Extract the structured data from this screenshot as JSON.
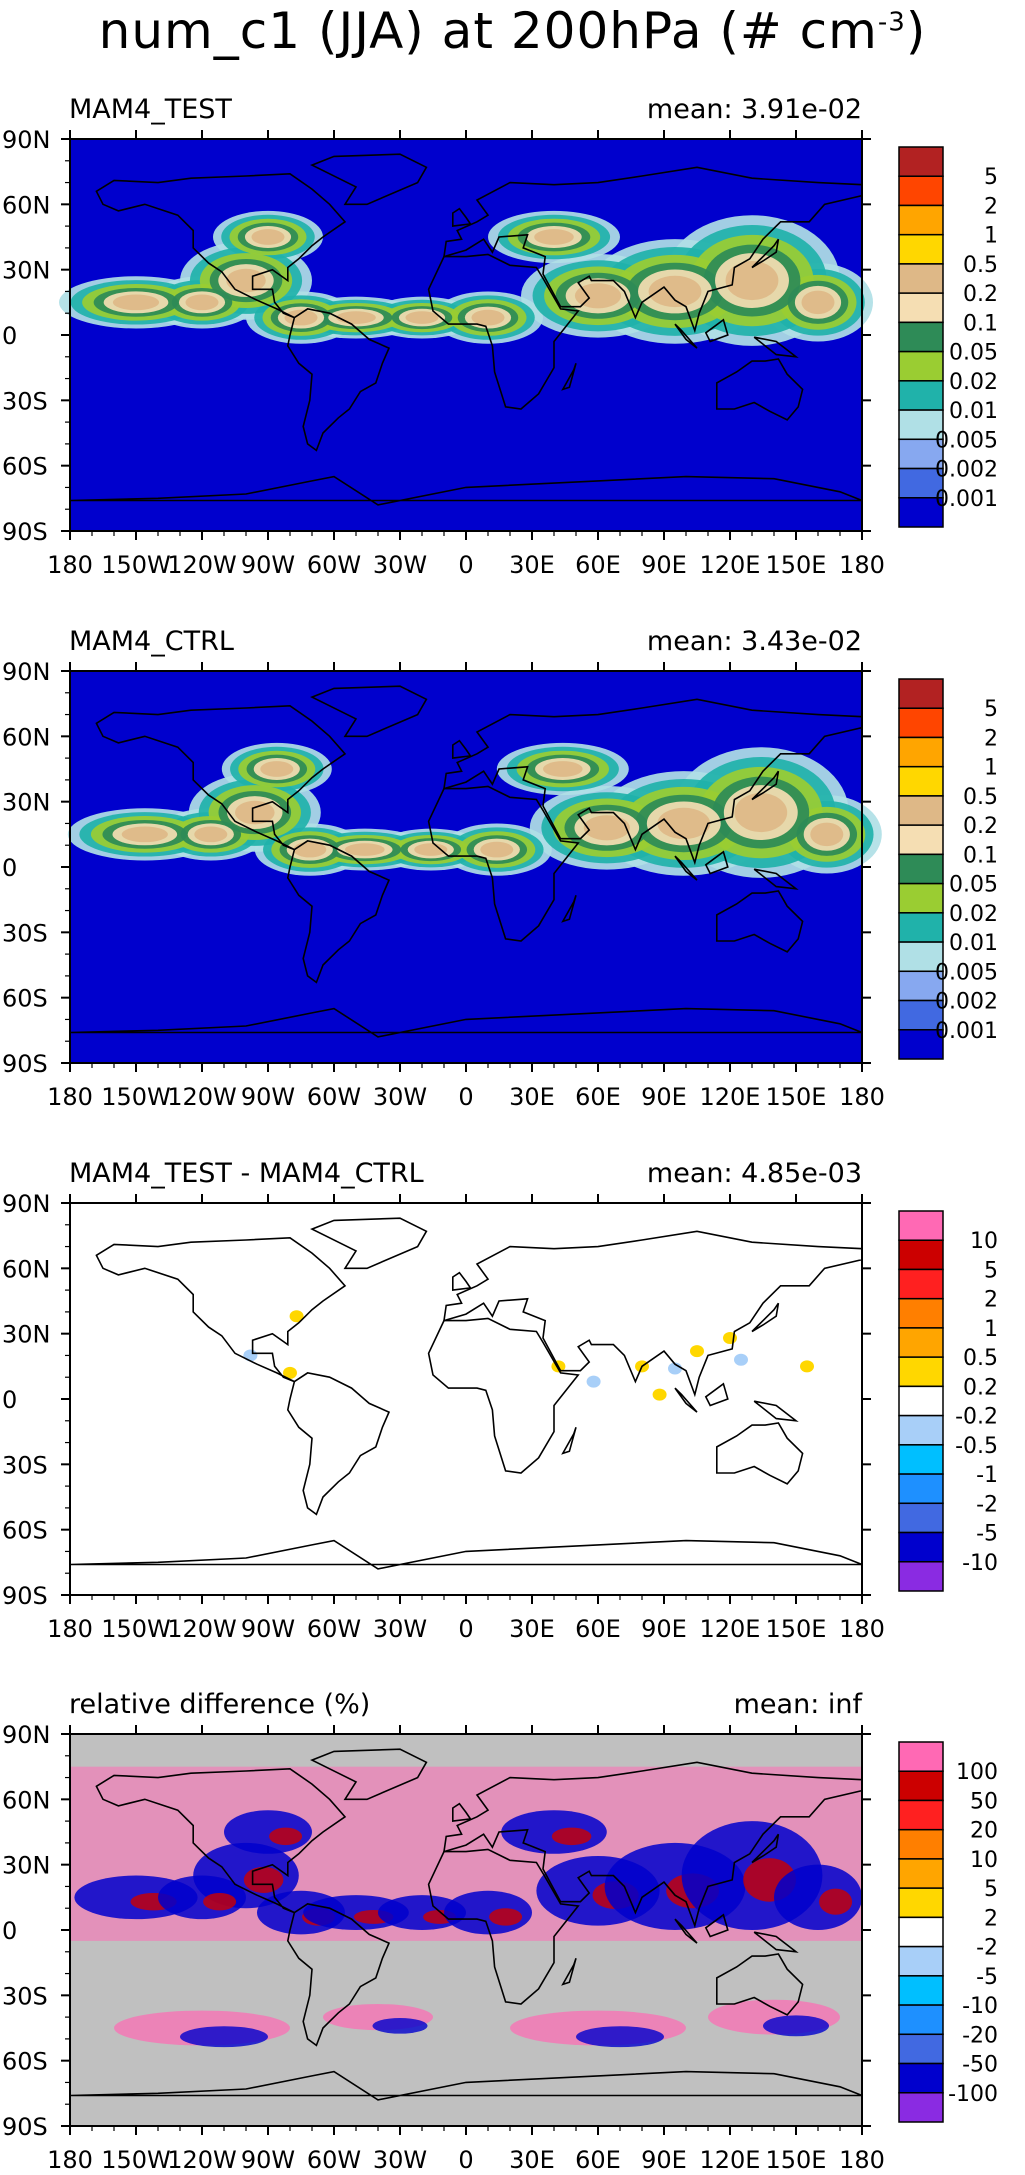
{
  "figure_title": "num_c1 (JJA) at 200hPa (# cm",
  "figure_title_exp": "-3",
  "chart_data": [
    {
      "type": "heatmap",
      "title": "MAM4_TEST",
      "mean_label": "mean: 3.91e-02",
      "x_ticks": [
        "180",
        "150W",
        "120W",
        "90W",
        "60W",
        "30W",
        "0",
        "30E",
        "60E",
        "90E",
        "120E",
        "150E",
        "180"
      ],
      "y_ticks": [
        "90N",
        "60N",
        "30N",
        "0",
        "30S",
        "60S",
        "90S"
      ],
      "xlim": [
        -180,
        180
      ],
      "ylim": [
        -90,
        90
      ],
      "colorbar_labels": [
        "5",
        "2",
        "1",
        "0.5",
        "0.2",
        "0.1",
        "0.05",
        "0.02",
        "0.01",
        "0.005",
        "0.002",
        "0.001"
      ],
      "colorbar_colors": [
        "#b22222",
        "#ff4500",
        "#ffa500",
        "#ffd700",
        "#deb887",
        "#f5deb3",
        "#2e8b57",
        "#9acd32",
        "#20b2aa",
        "#b0e0e6",
        "#87a8f0",
        "#4169e1",
        "#0000cd"
      ],
      "background_color": "#0000cd"
    },
    {
      "type": "heatmap",
      "title": "MAM4_CTRL",
      "mean_label": "mean: 3.43e-02",
      "x_ticks": [
        "180",
        "150W",
        "120W",
        "90W",
        "60W",
        "30W",
        "0",
        "30E",
        "60E",
        "90E",
        "120E",
        "150E",
        "180"
      ],
      "y_ticks": [
        "90N",
        "60N",
        "30N",
        "0",
        "30S",
        "60S",
        "90S"
      ],
      "xlim": [
        -180,
        180
      ],
      "ylim": [
        -90,
        90
      ],
      "colorbar_labels": [
        "5",
        "2",
        "1",
        "0.5",
        "0.2",
        "0.1",
        "0.05",
        "0.02",
        "0.01",
        "0.005",
        "0.002",
        "0.001"
      ],
      "colorbar_colors": [
        "#b22222",
        "#ff4500",
        "#ffa500",
        "#ffd700",
        "#deb887",
        "#f5deb3",
        "#2e8b57",
        "#9acd32",
        "#20b2aa",
        "#b0e0e6",
        "#87a8f0",
        "#4169e1",
        "#0000cd"
      ],
      "background_color": "#0000cd"
    },
    {
      "type": "heatmap",
      "title": "MAM4_TEST - MAM4_CTRL",
      "mean_label": "mean: 4.85e-03",
      "x_ticks": [
        "180",
        "150W",
        "120W",
        "90W",
        "60W",
        "30W",
        "0",
        "30E",
        "60E",
        "90E",
        "120E",
        "150E",
        "180"
      ],
      "y_ticks": [
        "90N",
        "60N",
        "30N",
        "0",
        "30S",
        "60S",
        "90S"
      ],
      "xlim": [
        -180,
        180
      ],
      "ylim": [
        -90,
        90
      ],
      "colorbar_labels": [
        "10",
        "5",
        "2",
        "1",
        "0.5",
        "0.2",
        "-0.2",
        "-0.5",
        "-1",
        "-2",
        "-5",
        "-10"
      ],
      "colorbar_colors": [
        "#ff69b4",
        "#cc0000",
        "#ff2020",
        "#ff7f00",
        "#ffa500",
        "#ffd700",
        "#ffffff",
        "#a8cff8",
        "#00bfff",
        "#1e90ff",
        "#4169e1",
        "#0000cd",
        "#8a2be2"
      ],
      "background_color": "#ffffff"
    },
    {
      "type": "heatmap",
      "title": "relative difference (%)",
      "mean_label": "mean:    inf",
      "x_ticks": [
        "180",
        "150W",
        "120W",
        "90W",
        "60W",
        "30W",
        "0",
        "30E",
        "60E",
        "90E",
        "120E",
        "150E",
        "180"
      ],
      "y_ticks": [
        "90N",
        "60N",
        "30N",
        "0",
        "30S",
        "60S",
        "90S"
      ],
      "xlim": [
        -180,
        180
      ],
      "ylim": [
        -90,
        90
      ],
      "colorbar_labels": [
        "100",
        "50",
        "20",
        "10",
        "5",
        "2",
        "-2",
        "-5",
        "-10",
        "-20",
        "-50",
        "-100"
      ],
      "colorbar_colors": [
        "#ff69b4",
        "#cc0000",
        "#ff2020",
        "#ff7f00",
        "#ffa500",
        "#ffd700",
        "#ffffff",
        "#a8cff8",
        "#00bfff",
        "#1e90ff",
        "#4169e1",
        "#0000cd",
        "#8a2be2"
      ],
      "background_color": "#c0c0c0"
    }
  ]
}
